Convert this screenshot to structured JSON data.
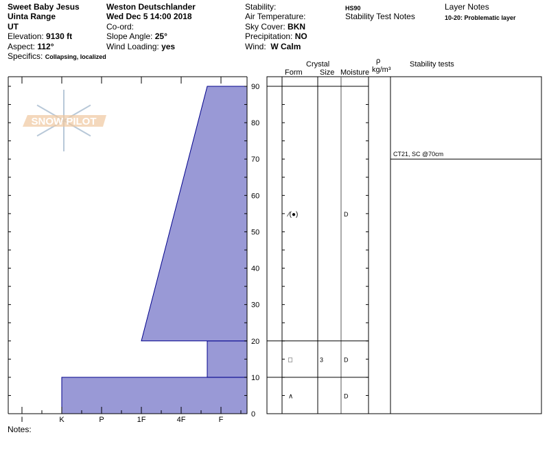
{
  "header": {
    "col1": {
      "location": "Sweet Baby Jesus",
      "range": "Uinta Range",
      "state": "UT",
      "elevation_label": "Elevation:",
      "elevation": "9130 ft",
      "aspect_label": "Aspect:",
      "aspect": "112°",
      "specifics_label": "Specifics:",
      "specifics": "Collapsing, localized"
    },
    "col2": {
      "observer": "Weston Deutschlander",
      "datetime": "Wed Dec 5 14:00 2018",
      "coord_label": "Co-ord:",
      "slope_label": "Slope Angle:",
      "slope": "25°",
      "wind_loading_label": "Wind Loading:",
      "wind_loading": "yes"
    },
    "col3": {
      "stability_label": "Stability:",
      "air_temp_label": "Air Temperature:",
      "sky_label": "Sky Cover:",
      "sky": "BKN",
      "precip_label": "Precipitation:",
      "precip": "NO",
      "wind_label": "Wind:",
      "wind": "W Calm"
    },
    "col4": {
      "hs": "HS90",
      "stability_test_notes_label": "Stability Test Notes"
    },
    "col5": {
      "layer_notes_label": "Layer Notes",
      "layer_note": "10-20: Problematic layer"
    }
  },
  "logo": {
    "text": "SNOW PILOT",
    "colors": {
      "text": "#f0c8a0",
      "flake": "#b8c8d8"
    }
  },
  "notes_label": "Notes:",
  "table": {
    "headers": {
      "crystal": "Crystal",
      "form": "Form",
      "size": "Size",
      "moisture": "Moisture",
      "rho": "ρ",
      "density_unit": "kg/m³",
      "stability_tests": "Stability tests"
    },
    "rows": [
      {
        "top": 20,
        "bottom": 90,
        "form": "⁄(●)",
        "size": "",
        "moisture": "D",
        "label_at": 55
      },
      {
        "top": 10,
        "bottom": 20,
        "form": "□",
        "size": "3",
        "moisture": "D",
        "label_at": 15
      },
      {
        "top": 0,
        "bottom": 10,
        "form": "∧",
        "size": "",
        "moisture": "D",
        "label_at": 5
      }
    ],
    "stability_tests": [
      {
        "depth": 70,
        "text": "CT21, SC @70cm"
      }
    ]
  },
  "chart_data": {
    "type": "area",
    "fill_color": "#9999d6",
    "stroke_color": "#00008b",
    "x_tick_labels": [
      "I",
      "K",
      "P",
      "1F",
      "4F",
      "F"
    ],
    "y_ticks": [
      0,
      10,
      20,
      30,
      40,
      50,
      60,
      70,
      80,
      90
    ],
    "ylim": [
      0,
      90
    ],
    "layers": [
      {
        "bottom": 0,
        "top": 10,
        "hardness_bottom": "K",
        "hardness_top": "K"
      },
      {
        "bottom": 10,
        "top": 20,
        "hardness_bottom": "4F-",
        "hardness_top": "4F-"
      },
      {
        "bottom": 20,
        "top": 90,
        "hardness_bottom": "1F",
        "hardness_top": "4F-"
      }
    ]
  }
}
